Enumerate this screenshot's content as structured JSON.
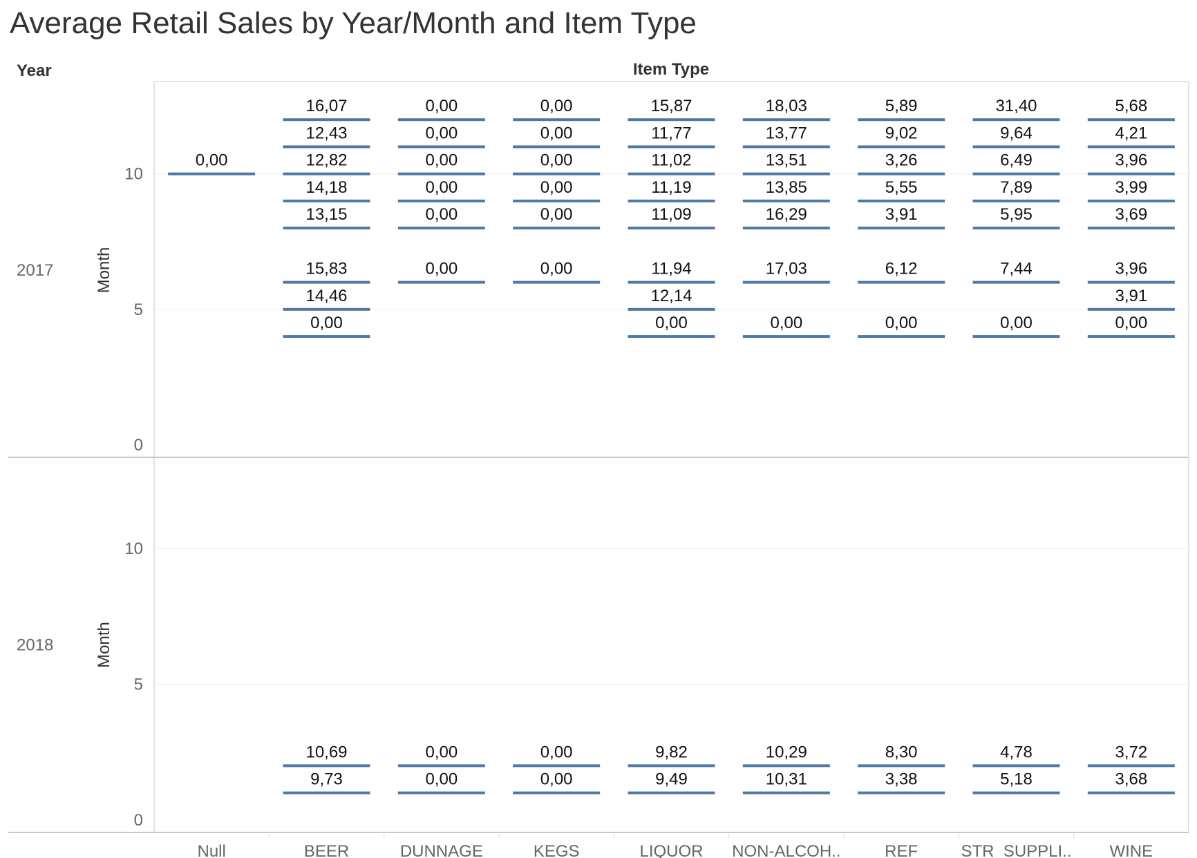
{
  "chart_data": {
    "type": "gantt",
    "title": "Average Retail Sales by Year/Month and Item Type",
    "row_header": "Year",
    "column_header": "Item Type",
    "ylabel": "Month",
    "yticks": [
      0,
      5,
      10
    ],
    "ylim": [
      0,
      13
    ],
    "rows": [
      "2017",
      "2018"
    ],
    "categories": [
      "Null",
      "BEER",
      "DUNNAGE",
      "KEGS",
      "LIQUOR",
      "NON-ALCOH..",
      "REF",
      "STR_SUPPLI..",
      "WINE"
    ],
    "mark_color": "#4e79a7",
    "cells": [
      {
        "year": "2017",
        "item": "Null",
        "marks": [
          {
            "month": 10,
            "value": "0,00"
          }
        ]
      },
      {
        "year": "2017",
        "item": "BEER",
        "marks": [
          {
            "month": 12,
            "value": "16,07"
          },
          {
            "month": 11,
            "value": "12,43"
          },
          {
            "month": 10,
            "value": "12,82"
          },
          {
            "month": 9,
            "value": "14,18"
          },
          {
            "month": 8,
            "value": "13,15"
          },
          {
            "month": 6,
            "value": "15,83"
          },
          {
            "month": 5,
            "value": "14,46"
          },
          {
            "month": 4,
            "value": "0,00"
          }
        ]
      },
      {
        "year": "2017",
        "item": "DUNNAGE",
        "marks": [
          {
            "month": 12,
            "value": "0,00"
          },
          {
            "month": 11,
            "value": "0,00"
          },
          {
            "month": 10,
            "value": "0,00"
          },
          {
            "month": 9,
            "value": "0,00"
          },
          {
            "month": 8,
            "value": "0,00"
          },
          {
            "month": 6,
            "value": "0,00"
          }
        ]
      },
      {
        "year": "2017",
        "item": "KEGS",
        "marks": [
          {
            "month": 12,
            "value": "0,00"
          },
          {
            "month": 11,
            "value": "0,00"
          },
          {
            "month": 10,
            "value": "0,00"
          },
          {
            "month": 9,
            "value": "0,00"
          },
          {
            "month": 8,
            "value": "0,00"
          },
          {
            "month": 6,
            "value": "0,00"
          }
        ]
      },
      {
        "year": "2017",
        "item": "LIQUOR",
        "marks": [
          {
            "month": 12,
            "value": "15,87"
          },
          {
            "month": 11,
            "value": "11,77"
          },
          {
            "month": 10,
            "value": "11,02"
          },
          {
            "month": 9,
            "value": "11,19"
          },
          {
            "month": 8,
            "value": "11,09"
          },
          {
            "month": 6,
            "value": "11,94"
          },
          {
            "month": 5,
            "value": "12,14"
          },
          {
            "month": 4,
            "value": "0,00"
          }
        ]
      },
      {
        "year": "2017",
        "item": "NON-ALCOH..",
        "marks": [
          {
            "month": 12,
            "value": "18,03"
          },
          {
            "month": 11,
            "value": "13,77"
          },
          {
            "month": 10,
            "value": "13,51"
          },
          {
            "month": 9,
            "value": "13,85"
          },
          {
            "month": 8,
            "value": "16,29"
          },
          {
            "month": 6,
            "value": "17,03"
          },
          {
            "month": 4,
            "value": "0,00"
          }
        ]
      },
      {
        "year": "2017",
        "item": "REF",
        "marks": [
          {
            "month": 12,
            "value": "5,89"
          },
          {
            "month": 11,
            "value": "9,02"
          },
          {
            "month": 10,
            "value": "3,26"
          },
          {
            "month": 9,
            "value": "5,55"
          },
          {
            "month": 8,
            "value": "3,91"
          },
          {
            "month": 6,
            "value": "6,12"
          },
          {
            "month": 4,
            "value": "0,00"
          }
        ]
      },
      {
        "year": "2017",
        "item": "STR_SUPPLI..",
        "marks": [
          {
            "month": 12,
            "value": "31,40"
          },
          {
            "month": 11,
            "value": "9,64"
          },
          {
            "month": 10,
            "value": "6,49"
          },
          {
            "month": 9,
            "value": "7,89"
          },
          {
            "month": 8,
            "value": "5,95"
          },
          {
            "month": 6,
            "value": "7,44"
          },
          {
            "month": 4,
            "value": "0,00"
          }
        ]
      },
      {
        "year": "2017",
        "item": "WINE",
        "marks": [
          {
            "month": 12,
            "value": "5,68"
          },
          {
            "month": 11,
            "value": "4,21"
          },
          {
            "month": 10,
            "value": "3,96"
          },
          {
            "month": 9,
            "value": "3,99"
          },
          {
            "month": 8,
            "value": "3,69"
          },
          {
            "month": 6,
            "value": "3,96"
          },
          {
            "month": 5,
            "value": "3,91"
          },
          {
            "month": 4,
            "value": "0,00"
          }
        ]
      },
      {
        "year": "2018",
        "item": "BEER",
        "marks": [
          {
            "month": 2,
            "value": "10,69"
          },
          {
            "month": 1,
            "value": "9,73"
          }
        ]
      },
      {
        "year": "2018",
        "item": "DUNNAGE",
        "marks": [
          {
            "month": 2,
            "value": "0,00"
          },
          {
            "month": 1,
            "value": "0,00"
          }
        ]
      },
      {
        "year": "2018",
        "item": "KEGS",
        "marks": [
          {
            "month": 2,
            "value": "0,00"
          },
          {
            "month": 1,
            "value": "0,00"
          }
        ]
      },
      {
        "year": "2018",
        "item": "LIQUOR",
        "marks": [
          {
            "month": 2,
            "value": "9,82"
          },
          {
            "month": 1,
            "value": "9,49"
          }
        ]
      },
      {
        "year": "2018",
        "item": "NON-ALCOH..",
        "marks": [
          {
            "month": 2,
            "value": "10,29"
          },
          {
            "month": 1,
            "value": "10,31"
          }
        ]
      },
      {
        "year": "2018",
        "item": "REF",
        "marks": [
          {
            "month": 2,
            "value": "8,30"
          },
          {
            "month": 1,
            "value": "3,38"
          }
        ]
      },
      {
        "year": "2018",
        "item": "STR_SUPPLI..",
        "marks": [
          {
            "month": 2,
            "value": "4,78"
          },
          {
            "month": 1,
            "value": "5,18"
          }
        ]
      },
      {
        "year": "2018",
        "item": "WINE",
        "marks": [
          {
            "month": 2,
            "value": "3,72"
          },
          {
            "month": 1,
            "value": "3,68"
          }
        ]
      }
    ]
  }
}
